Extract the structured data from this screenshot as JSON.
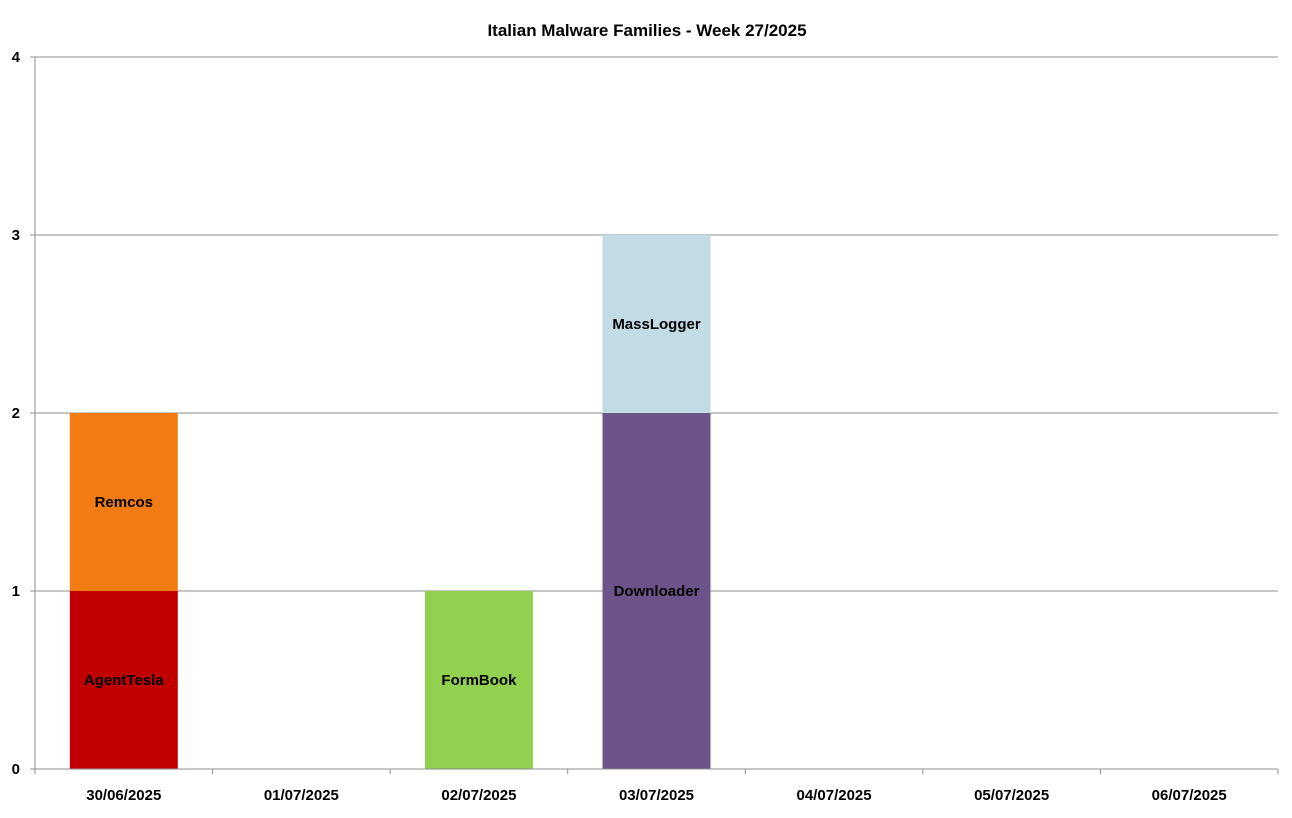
{
  "chart_data": {
    "type": "bar",
    "stacked": true,
    "title": "Italian Malware Families - Week 27/2025",
    "xlabel": "",
    "ylabel": "",
    "ylim": [
      0,
      4
    ],
    "yticks": [
      "0",
      "1",
      "2",
      "3",
      "4"
    ],
    "grid": true,
    "legend": "none",
    "categories": [
      "30/06/2025",
      "01/07/2025",
      "02/07/2025",
      "03/07/2025",
      "04/07/2025",
      "05/07/2025",
      "06/07/2025"
    ],
    "segments": [
      {
        "category": "30/06/2025",
        "label": "AgentTesla",
        "value": 1,
        "color": "#c00000"
      },
      {
        "category": "30/06/2025",
        "label": "Remcos",
        "value": 1,
        "color": "#f27b14"
      },
      {
        "category": "02/07/2025",
        "label": "FormBook",
        "value": 1,
        "color": "#92d050"
      },
      {
        "category": "03/07/2025",
        "label": "Downloader",
        "value": 2,
        "color": "#6c548a"
      },
      {
        "category": "03/07/2025",
        "label": "MassLogger",
        "value": 1,
        "color": "#c2dbe4"
      }
    ]
  }
}
